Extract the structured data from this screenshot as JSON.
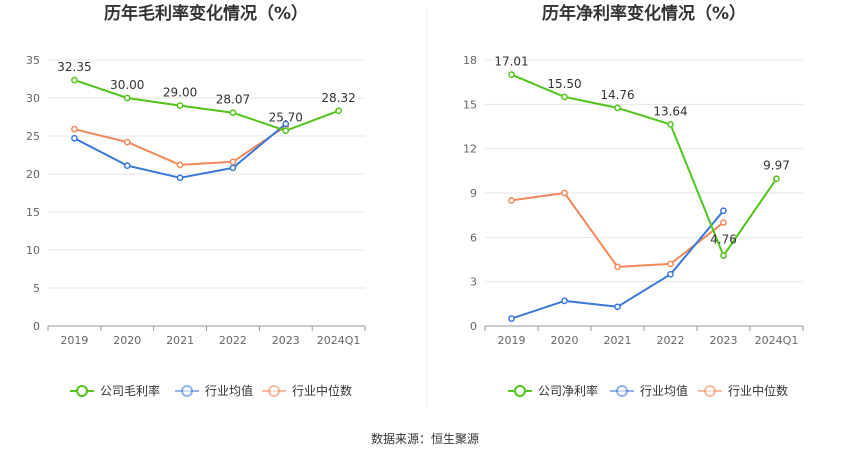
{
  "source_note": "数据来源：恒生聚源",
  "chart_data": [
    {
      "type": "line",
      "title": "历年毛利率变化情况（%）",
      "categories": [
        "2019",
        "2020",
        "2021",
        "2022",
        "2023",
        "2024Q1"
      ],
      "ylim": [
        0,
        35
      ],
      "yticks": [
        0,
        5,
        10,
        15,
        20,
        25,
        30,
        35
      ],
      "grid": true,
      "legend_position": "bottom",
      "series": [
        {
          "name": "公司毛利率",
          "color": "#52c41a",
          "values": [
            32.35,
            30.0,
            29.0,
            28.07,
            25.7,
            28.32
          ],
          "labels": [
            "32.35",
            "30.00",
            "29.00",
            "28.07",
            "25.70",
            "28.32"
          ]
        },
        {
          "name": "行业均值",
          "color": "#3c78d8",
          "values": [
            24.7,
            21.1,
            19.5,
            20.8,
            26.6,
            null
          ]
        },
        {
          "name": "行业中位数",
          "color": "#f0885a",
          "values": [
            25.9,
            24.2,
            21.2,
            21.6,
            26.3,
            null
          ]
        }
      ]
    },
    {
      "type": "line",
      "title": "历年净利率变化情况（%）",
      "categories": [
        "2019",
        "2020",
        "2021",
        "2022",
        "2023",
        "2024Q1"
      ],
      "ylim": [
        0,
        18
      ],
      "yticks": [
        0,
        3,
        6,
        9,
        12,
        15,
        18
      ],
      "grid": true,
      "legend_position": "bottom",
      "series": [
        {
          "name": "公司净利率",
          "color": "#52c41a",
          "values": [
            17.01,
            15.5,
            14.76,
            13.64,
            4.76,
            9.97
          ],
          "labels": [
            "17.01",
            "15.50",
            "14.76",
            "13.64",
            "4.76",
            "9.97"
          ]
        },
        {
          "name": "行业均值",
          "color": "#3c78d8",
          "values": [
            0.5,
            1.7,
            1.3,
            3.5,
            7.8,
            null
          ]
        },
        {
          "name": "行业中位数",
          "color": "#f0885a",
          "values": [
            8.5,
            9.0,
            4.0,
            4.2,
            7.0,
            null
          ]
        }
      ]
    }
  ]
}
